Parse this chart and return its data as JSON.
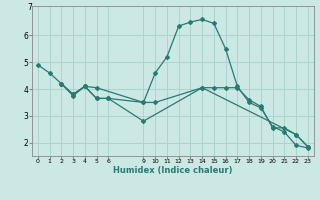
{
  "xlabel": "Humidex (Indice chaleur)",
  "bg_color": "#cce8e4",
  "grid_color": "#aad4ce",
  "line_color": "#2a7a72",
  "xtick_labels": [
    "0",
    "1",
    "2",
    "3",
    "4",
    "5",
    "6",
    "9",
    "10",
    "11",
    "12",
    "13",
    "14",
    "15",
    "16",
    "17",
    "18",
    "19",
    "20",
    "21",
    "22",
    "23"
  ],
  "xtick_positions": [
    0,
    1,
    2,
    3,
    4,
    5,
    6,
    9,
    10,
    11,
    12,
    13,
    14,
    15,
    16,
    17,
    18,
    19,
    20,
    21,
    22,
    23
  ],
  "ytick_labels": [
    "2",
    "3",
    "4",
    "5",
    "6"
  ],
  "ytick_positions": [
    2,
    3,
    4,
    5,
    6
  ],
  "xlim": [
    -0.5,
    23.5
  ],
  "ylim": [
    1.5,
    7.1
  ],
  "curves": [
    {
      "x": [
        0,
        1,
        2,
        3,
        4,
        5,
        9,
        10,
        11,
        12,
        13,
        14,
        15,
        16,
        17,
        18,
        19,
        20,
        21,
        22,
        23
      ],
      "y": [
        4.9,
        4.6,
        4.2,
        3.8,
        4.1,
        4.05,
        3.5,
        4.6,
        5.2,
        6.35,
        6.5,
        6.6,
        6.45,
        5.5,
        4.1,
        3.5,
        3.3,
        2.6,
        2.4,
        1.9,
        1.8
      ]
    },
    {
      "x": [
        2,
        3,
        4,
        5,
        6,
        9,
        10,
        14,
        15,
        16,
        17,
        18,
        19,
        20,
        21,
        22,
        23
      ],
      "y": [
        4.2,
        3.75,
        4.1,
        3.65,
        3.65,
        3.5,
        3.5,
        4.05,
        4.05,
        4.05,
        4.05,
        3.6,
        3.35,
        2.55,
        2.55,
        2.3,
        1.85
      ]
    },
    {
      "x": [
        2,
        3,
        4,
        5,
        6,
        9,
        14,
        22,
        23
      ],
      "y": [
        4.2,
        3.8,
        4.1,
        3.65,
        3.65,
        2.8,
        4.05,
        2.3,
        1.85
      ]
    }
  ]
}
